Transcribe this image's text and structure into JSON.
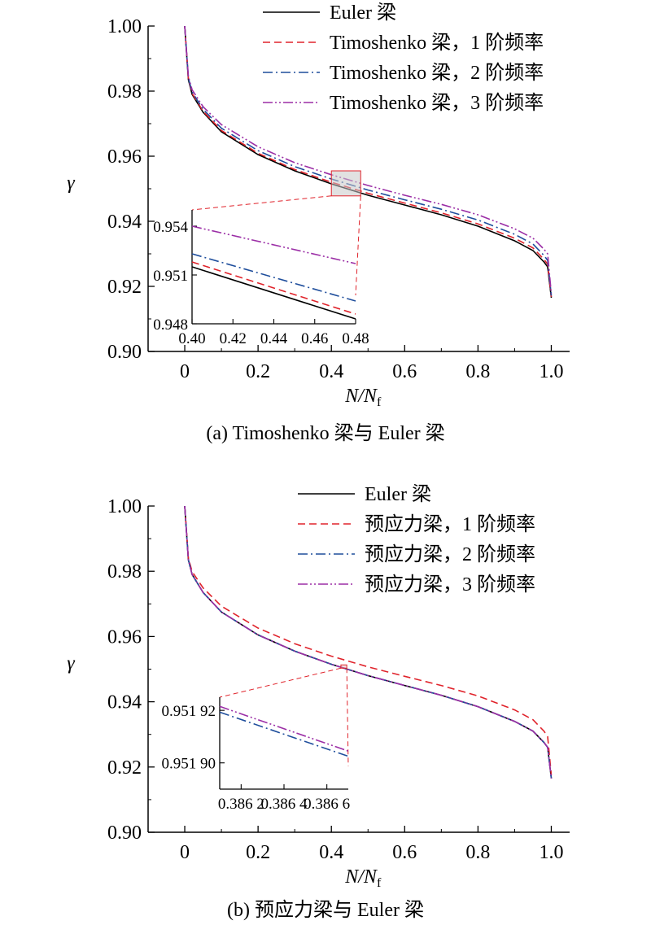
{
  "chart_data": [
    {
      "id": "a",
      "type": "line",
      "caption": "(a) Timoshenko 梁与 Euler 梁",
      "xlabel_main": "N/N",
      "xlabel_sub": "f",
      "ylabel": "γ",
      "xlim": [
        -0.1,
        1.05
      ],
      "ylim": [
        0.9,
        1.0
      ],
      "xticks": [
        0,
        0.2,
        0.4,
        0.6,
        0.8,
        1.0
      ],
      "xtick_labels": [
        "0",
        "0.2",
        "0.4",
        "0.6",
        "0.8",
        "1.0"
      ],
      "yticks": [
        0.9,
        0.92,
        0.94,
        0.96,
        0.98,
        1.0
      ],
      "ytick_labels": [
        "0.90",
        "0.92",
        "0.94",
        "0.96",
        "0.98",
        "1.00"
      ],
      "x": [
        0,
        0.01,
        0.02,
        0.05,
        0.1,
        0.2,
        0.3,
        0.4,
        0.5,
        0.6,
        0.7,
        0.8,
        0.9,
        0.95,
        0.98,
        0.99,
        1.0
      ],
      "series": [
        {
          "name": "Euler 梁",
          "color": "#000000",
          "dash": "solid",
          "values": [
            1.0,
            0.9835,
            0.979,
            0.9735,
            0.9675,
            0.9605,
            0.9555,
            0.9515,
            0.948,
            0.945,
            0.942,
            0.9385,
            0.934,
            0.931,
            0.9275,
            0.926,
            0.9165
          ]
        },
        {
          "name": "Timoshenko 梁，1 阶频率",
          "color": "#e0232b",
          "dash": "dash",
          "values": [
            1.0,
            0.9837,
            0.9793,
            0.9738,
            0.9679,
            0.9609,
            0.9559,
            0.952,
            0.9486,
            0.9456,
            0.9426,
            0.9392,
            0.9348,
            0.9318,
            0.9283,
            0.9268,
            0.9168
          ]
        },
        {
          "name": "Timoshenko 梁，2 阶频率",
          "color": "#1f4e9c",
          "dash": "dashdot",
          "values": [
            1.0,
            0.984,
            0.9797,
            0.9744,
            0.9686,
            0.9617,
            0.9568,
            0.953,
            0.9496,
            0.9466,
            0.9437,
            0.9404,
            0.936,
            0.933,
            0.9295,
            0.928,
            0.9172
          ]
        },
        {
          "name": "Timoshenko 梁，3 阶频率",
          "color": "#9b2ea6",
          "dash": "dashdotdot",
          "values": [
            1.0,
            0.9845,
            0.9804,
            0.9752,
            0.9697,
            0.9629,
            0.958,
            0.9543,
            0.951,
            0.948,
            0.9452,
            0.942,
            0.9377,
            0.9348,
            0.9314,
            0.93,
            0.9177
          ]
        }
      ],
      "zoom_box": {
        "x": [
          0.4,
          0.48
        ],
        "y": [
          0.9478,
          0.9555
        ]
      },
      "inset": {
        "xlim": [
          0.4,
          0.48
        ],
        "ylim": [
          0.948,
          0.955
        ],
        "xticks": [
          0.4,
          0.42,
          0.44,
          0.46,
          0.48
        ],
        "xtick_labels": [
          "0.40",
          "0.42",
          "0.44",
          "0.46",
          "0.48"
        ],
        "yticks": [
          0.948,
          0.951,
          0.954
        ],
        "ytick_labels": [
          "0.948",
          "0.951",
          "0.954"
        ],
        "x": [
          0.4,
          0.48
        ],
        "series_values": [
          [
            0.9515,
            0.9483
          ],
          [
            0.9518,
            0.9486
          ],
          [
            0.9523,
            0.9494
          ],
          [
            0.954,
            0.9517
          ]
        ]
      }
    },
    {
      "id": "b",
      "type": "line",
      "caption": "(b) 预应力梁与 Euler 梁",
      "xlabel_main": "N/N",
      "xlabel_sub": "f",
      "ylabel": "γ",
      "xlim": [
        -0.1,
        1.05
      ],
      "ylim": [
        0.9,
        1.0
      ],
      "xticks": [
        0,
        0.2,
        0.4,
        0.6,
        0.8,
        1.0
      ],
      "xtick_labels": [
        "0",
        "0.2",
        "0.4",
        "0.6",
        "0.8",
        "1.0"
      ],
      "yticks": [
        0.9,
        0.92,
        0.94,
        0.96,
        0.98,
        1.0
      ],
      "ytick_labels": [
        "0.90",
        "0.92",
        "0.94",
        "0.96",
        "0.98",
        "1.00"
      ],
      "x": [
        0,
        0.01,
        0.02,
        0.05,
        0.1,
        0.2,
        0.3,
        0.4,
        0.5,
        0.6,
        0.7,
        0.8,
        0.9,
        0.95,
        0.98,
        0.99,
        1.0
      ],
      "series": [
        {
          "name": "Euler 梁",
          "color": "#000000",
          "dash": "solid",
          "values": [
            1.0,
            0.9835,
            0.979,
            0.9735,
            0.9675,
            0.9605,
            0.9555,
            0.9515,
            0.948,
            0.945,
            0.942,
            0.9385,
            0.934,
            0.931,
            0.9275,
            0.926,
            0.9165
          ]
        },
        {
          "name": "预应力梁，1 阶频率",
          "color": "#e0232b",
          "dash": "dash",
          "values": [
            1.0,
            0.984,
            0.9799,
            0.9749,
            0.9693,
            0.9626,
            0.9578,
            0.954,
            0.9507,
            0.9478,
            0.945,
            0.9418,
            0.9375,
            0.9345,
            0.931,
            0.9293,
            0.9175
          ]
        },
        {
          "name": "预应力梁，2 阶频率",
          "color": "#1f4e9c",
          "dash": "dashdot",
          "values": [
            1.0,
            0.9835,
            0.979,
            0.9735,
            0.9675,
            0.9605,
            0.9555,
            0.9515,
            0.948,
            0.945,
            0.942,
            0.9385,
            0.934,
            0.931,
            0.9275,
            0.926,
            0.9165
          ]
        },
        {
          "name": "预应力梁，3 阶频率",
          "color": "#9b2ea6",
          "dash": "dashdotdot",
          "values": [
            1.0,
            0.9835,
            0.979,
            0.9735,
            0.9675,
            0.9605,
            0.9555,
            0.9515,
            0.948,
            0.945,
            0.942,
            0.9385,
            0.934,
            0.931,
            0.9275,
            0.926,
            0.9165
          ]
        }
      ],
      "zoom_box": {
        "x": [
          0.426,
          0.442
        ],
        "y": [
          0.9503,
          0.9513
        ]
      },
      "inset": {
        "xlim": [
          0.3861,
          0.3867
        ],
        "ylim": [
          0.95189,
          0.951925
        ],
        "xticks": [
          0.3862,
          0.3864,
          0.3866
        ],
        "xtick_labels": [
          "0.386 2",
          "0.386 4",
          "0.386 6"
        ],
        "yticks": [
          0.9519,
          0.95192
        ],
        "ytick_labels": [
          "0.951 90",
          "0.951 92"
        ],
        "x": [
          0.3861,
          0.3867
        ],
        "series_values": [
          null,
          null,
          [
            0.9519193,
            0.9519025
          ],
          [
            0.9519215,
            0.9519045
          ]
        ]
      }
    }
  ]
}
